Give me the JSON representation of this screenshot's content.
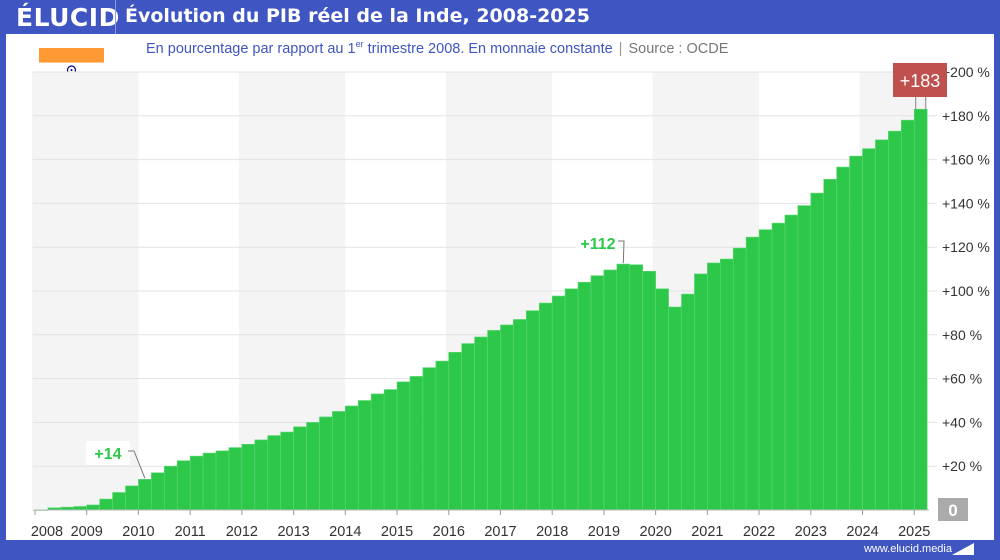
{
  "header": {
    "logo": "ÉLUCID",
    "title": "Évolution du PIB réel de la Inde, 2008-2025"
  },
  "subtitle": {
    "text_before": "En pourcentage par rapport au 1",
    "sup": "er",
    "text_after": " trimestre 2008. En monnaie constante",
    "separator": "|",
    "source": "Source : OCDE"
  },
  "flag": {
    "name": "india-flag",
    "colors": [
      "#ff9933",
      "#ffffff",
      "#138808"
    ],
    "chakra": "#000080"
  },
  "footer": {
    "url": "www.elucid.media"
  },
  "colors": {
    "frame": "#3f55c2",
    "bars": "#2dc84a",
    "label_green": "#2dc84a",
    "highlight": "#c0504d",
    "band": "#f4f4f4"
  },
  "chart_data": {
    "type": "bar",
    "title": "Évolution du PIB réel de la Inde, 2008-2025",
    "subtitle": "En pourcentage par rapport au 1er trimestre 2008. En monnaie constante",
    "frequency": "quarterly",
    "start": "2008-Q1",
    "end": "2025-Q1",
    "values": [
      0,
      1,
      1.3,
      1.6,
      2.3,
      5,
      8,
      11,
      14,
      17,
      20,
      22.5,
      24.6,
      26,
      27,
      28.5,
      30,
      32,
      34,
      35.6,
      38,
      40,
      42.5,
      45,
      47.5,
      50,
      53,
      55,
      58.5,
      61,
      65,
      68,
      72,
      76,
      79,
      82,
      84.5,
      87,
      91,
      94.5,
      97.7,
      101,
      104,
      107,
      109.6,
      112.3,
      112,
      109,
      101,
      92.7,
      98.6,
      107.8,
      112.8,
      114.6,
      119.6,
      124.6,
      128,
      131,
      134.7,
      139,
      144.7,
      151,
      156.6,
      161.6,
      165,
      169,
      173,
      178,
      183
    ],
    "x_tick_labels": [
      "2008",
      "2009",
      "2010",
      "2011",
      "2012",
      "2013",
      "2014",
      "2015",
      "2016",
      "2017",
      "2018",
      "2019",
      "2020",
      "2021",
      "2022",
      "2023",
      "2024",
      "2025"
    ],
    "y_tick_labels": [
      "0",
      "+20 %",
      "+40 %",
      "+60 %",
      "+80 %",
      "+100 %",
      "+120 %",
      "+140 %",
      "+160 %",
      "+180 %",
      "+200 %"
    ],
    "y_ticks": [
      0,
      20,
      40,
      60,
      80,
      100,
      120,
      140,
      160,
      180,
      200
    ],
    "ylim": [
      0,
      200
    ],
    "y_axis_side": "right",
    "grid": true,
    "annotations": [
      {
        "index": 8,
        "label": "+14",
        "style": "green"
      },
      {
        "index": 45,
        "label": "+112",
        "style": "green"
      },
      {
        "index": 68,
        "label": "+183",
        "style": "highlight-box"
      }
    ]
  }
}
